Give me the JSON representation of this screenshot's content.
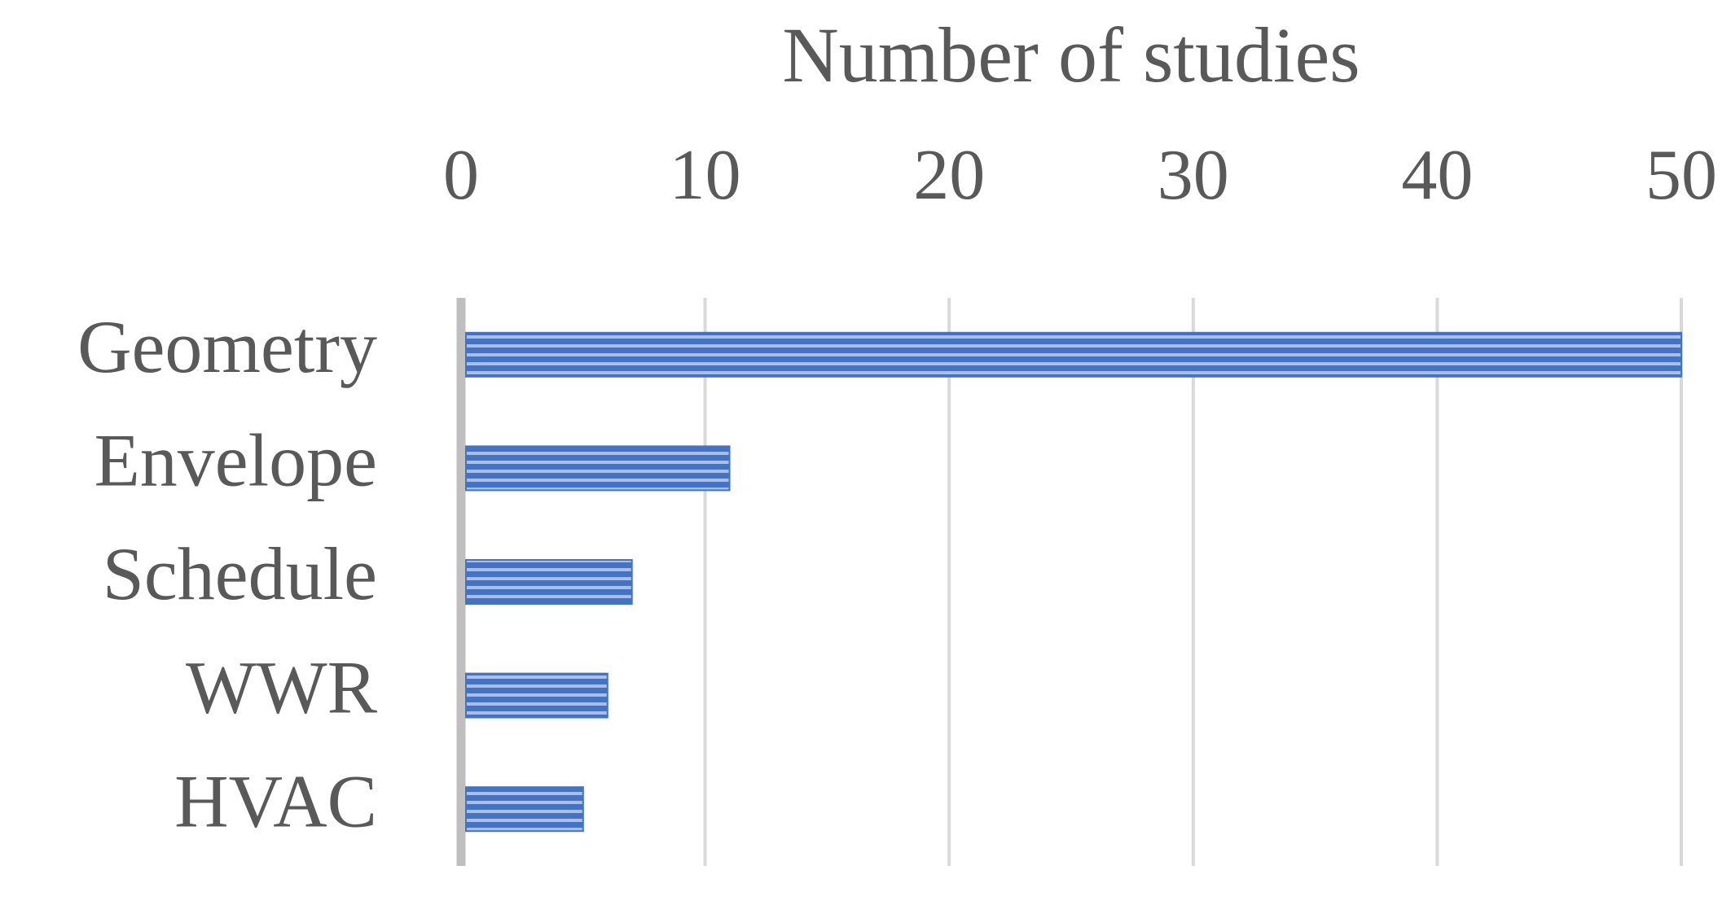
{
  "chart_data": {
    "type": "bar",
    "orientation": "horizontal",
    "x_label": "Number of studies",
    "categories": [
      "Geometry",
      "Envelope",
      "Schedule",
      "WWR",
      "HVAC"
    ],
    "values": [
      50,
      11,
      7,
      6,
      5
    ],
    "color": "#4472c4",
    "xlim": [
      0,
      50
    ],
    "xticks": [
      0,
      10,
      20,
      30,
      40,
      50
    ],
    "grid": true
  }
}
